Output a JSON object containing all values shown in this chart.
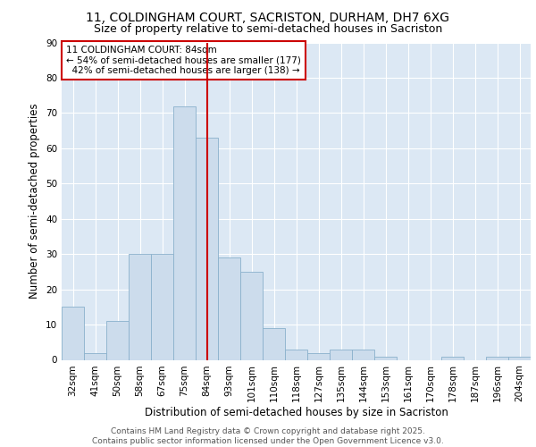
{
  "title": "11, COLDINGHAM COURT, SACRISTON, DURHAM, DH7 6XG",
  "subtitle": "Size of property relative to semi-detached houses in Sacriston",
  "xlabel": "Distribution of semi-detached houses by size in Sacriston",
  "ylabel": "Number of semi-detached properties",
  "categories": [
    "32sqm",
    "41sqm",
    "50sqm",
    "58sqm",
    "67sqm",
    "75sqm",
    "84sqm",
    "93sqm",
    "101sqm",
    "110sqm",
    "118sqm",
    "127sqm",
    "135sqm",
    "144sqm",
    "153sqm",
    "161sqm",
    "170sqm",
    "178sqm",
    "187sqm",
    "196sqm",
    "204sqm"
  ],
  "values": [
    15,
    2,
    11,
    30,
    30,
    72,
    63,
    29,
    25,
    9,
    3,
    2,
    3,
    3,
    1,
    0,
    0,
    1,
    0,
    1,
    1
  ],
  "bar_color": "#ccdcec",
  "bar_edge_color": "#8ab0cc",
  "highlight_index": 6,
  "vline_color": "#cc0000",
  "annotation_text": "11 COLDINGHAM COURT: 84sqm\n← 54% of semi-detached houses are smaller (177)\n  42% of semi-detached houses are larger (138) →",
  "annotation_box_color": "#ffffff",
  "annotation_box_edge_color": "#cc0000",
  "ylim": [
    0,
    90
  ],
  "yticks": [
    0,
    10,
    20,
    30,
    40,
    50,
    60,
    70,
    80,
    90
  ],
  "background_color": "#dce8f4",
  "footnote": "Contains HM Land Registry data © Crown copyright and database right 2025.\nContains public sector information licensed under the Open Government Licence v3.0.",
  "title_fontsize": 10,
  "subtitle_fontsize": 9,
  "xlabel_fontsize": 8.5,
  "ylabel_fontsize": 8.5,
  "tick_fontsize": 7.5,
  "annotation_fontsize": 7.5,
  "footnote_fontsize": 6.5
}
